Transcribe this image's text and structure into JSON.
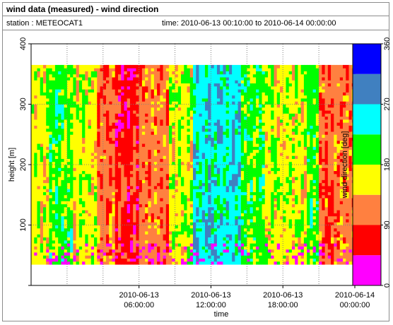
{
  "header": {
    "title": "wind data (measured) - wind direction",
    "station": "station : METEOCAT1",
    "timerange": "time: 2010-06-13 00:10:00 to 2010-06-14 00:00:00"
  },
  "chart_data": {
    "type": "heatmap",
    "xlabel": "time",
    "ylabel": "height [m]",
    "colorbar_label": "wind direction [deg]",
    "xlim_hours": [
      -3,
      24
    ],
    "ylim": [
      0,
      400
    ],
    "yticks": [
      0,
      100,
      200,
      300,
      400
    ],
    "ytick_labels": [
      "",
      "100",
      "200",
      "300",
      "400"
    ],
    "xticks": [
      {
        "hour": 6,
        "line1": "2010-06-13",
        "line2": "06:00:00"
      },
      {
        "hour": 12,
        "line1": "2010-06-13",
        "line2": "12:00:00"
      },
      {
        "hour": 18,
        "line1": "2010-06-13",
        "line2": "18:00:00"
      },
      {
        "hour": 24,
        "line1": "2010-06-14",
        "line2": "00:00:00"
      }
    ],
    "grid": true,
    "colorbar": {
      "ticks": [
        "0",
        "90",
        "180",
        "270",
        "360"
      ],
      "bins": [
        {
          "from": 0,
          "to": 45,
          "color": "#ff00ff"
        },
        {
          "from": 45,
          "to": 90,
          "color": "#ff0000"
        },
        {
          "from": 90,
          "to": 135,
          "color": "#ff8040"
        },
        {
          "from": 135,
          "to": 180,
          "color": "#ffff00"
        },
        {
          "from": 180,
          "to": 225,
          "color": "#00ff00"
        },
        {
          "from": 225,
          "to": 270,
          "color": "#00ffff"
        },
        {
          "from": 270,
          "to": 315,
          "color": "#4080c0"
        },
        {
          "from": 315,
          "to": 360,
          "color": "#0000ff"
        }
      ]
    },
    "data_region": {
      "x_hours": [
        -3,
        24
      ],
      "height_m": [
        35,
        365
      ]
    },
    "dominant_direction_segments": [
      {
        "from_hour": -3.0,
        "to_hour": -1.5,
        "direction_deg": 160
      },
      {
        "from_hour": -1.5,
        "to_hour": 0.5,
        "direction_deg": 200
      },
      {
        "from_hour": 0.5,
        "to_hour": 2.5,
        "direction_deg": 160
      },
      {
        "from_hour": 2.5,
        "to_hour": 4.0,
        "direction_deg": 110
      },
      {
        "from_hour": 4.0,
        "to_hour": 6.0,
        "direction_deg": 70
      },
      {
        "from_hour": 6.0,
        "to_hour": 8.5,
        "direction_deg": 110
      },
      {
        "from_hour": 8.5,
        "to_hour": 10.5,
        "direction_deg": 160
      },
      {
        "from_hour": 10.5,
        "to_hour": 14.5,
        "direction_deg": 250
      },
      {
        "from_hour": 14.5,
        "to_hour": 16.5,
        "direction_deg": 200
      },
      {
        "from_hour": 16.5,
        "to_hour": 20.0,
        "direction_deg": 160
      },
      {
        "from_hour": 20.0,
        "to_hour": 21.0,
        "direction_deg": 200
      },
      {
        "from_hour": 21.0,
        "to_hour": 24.0,
        "direction_deg": 110
      }
    ]
  }
}
